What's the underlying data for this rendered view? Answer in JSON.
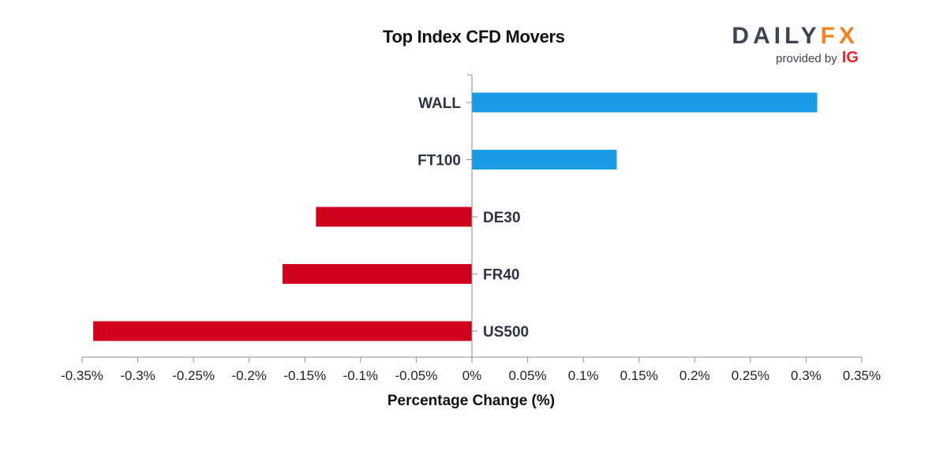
{
  "brand": {
    "name_part1": "DAILY",
    "name_part2": "FX",
    "provided_by": "provided by",
    "provided_by_brand": "IG",
    "colors": {
      "dark": "#3d4452",
      "orange": "#f48220",
      "red": "#e8232a"
    }
  },
  "chart_data": {
    "type": "bar",
    "orientation": "horizontal",
    "title": "Top Index CFD Movers",
    "xlabel": "Percentage Change (%)",
    "ylabel": "",
    "xlim": [
      -0.35,
      0.35
    ],
    "xticks": [
      -0.35,
      -0.3,
      -0.25,
      -0.2,
      -0.15,
      -0.1,
      -0.05,
      0,
      0.05,
      0.1,
      0.15,
      0.2,
      0.25,
      0.3,
      0.35
    ],
    "xtick_labels": [
      "-0.35%",
      "-0.3%",
      "-0.25%",
      "-0.2%",
      "-0.15%",
      "-0.1%",
      "-0.05%",
      "0%",
      "0.05%",
      "0.1%",
      "0.15%",
      "0.2%",
      "0.25%",
      "0.3%",
      "0.35%"
    ],
    "categories": [
      "WALL",
      "FT100",
      "DE30",
      "FR40",
      "US500"
    ],
    "values": [
      0.31,
      0.13,
      -0.14,
      -0.17,
      -0.34
    ],
    "colors": {
      "positive": "#1a9be6",
      "negative": "#d0021b"
    },
    "grid": false,
    "legend": "none"
  }
}
